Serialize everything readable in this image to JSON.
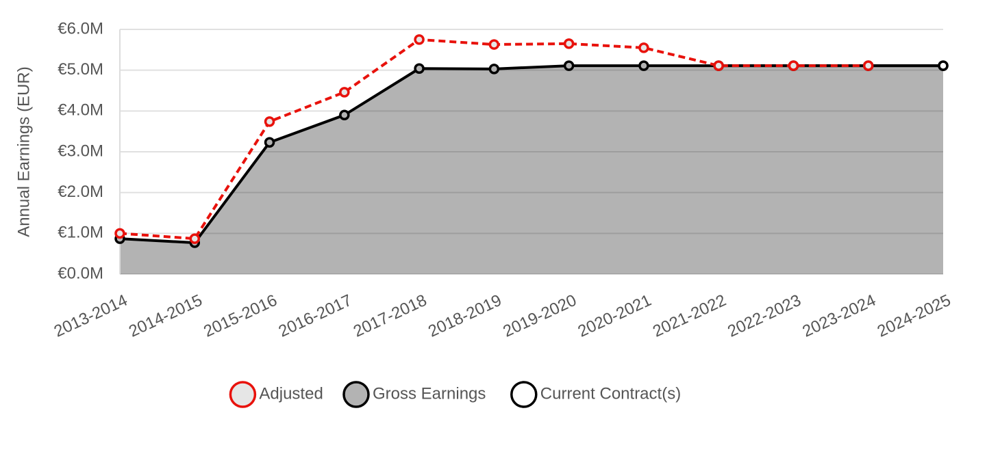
{
  "chart_data": {
    "type": "line",
    "y_label": "Annual Earnings (EUR)",
    "categories": [
      "2013-2014",
      "2014-2015",
      "2015-2016",
      "2016-2017",
      "2017-2018",
      "2018-2019",
      "2019-2020",
      "2020-2021",
      "2021-2022",
      "2022-2023",
      "2023-2024",
      "2024-2025"
    ],
    "series": [
      {
        "name": "Adjusted",
        "color": "#e8120c",
        "marker_fill": "#e6e6e6",
        "line_style": "dashed",
        "values": [
          1000000,
          870000,
          3740000,
          4460000,
          5750000,
          5630000,
          5650000,
          5550000,
          5110000,
          5110000,
          5110000,
          null
        ]
      },
      {
        "name": "Gross Earnings",
        "color": "#000000",
        "marker_fill": "#b3b3b3",
        "area_fill": "#b3b3b3",
        "line_style": "solid",
        "values": [
          870000,
          770000,
          3230000,
          3900000,
          5040000,
          5030000,
          5110000,
          5110000,
          5110000,
          5110000,
          5110000,
          5110000
        ]
      },
      {
        "name": "Current Contract(s)",
        "color": "#000000",
        "marker_fill": "#ffffff",
        "line_style": "solid",
        "values": [
          null,
          null,
          null,
          null,
          null,
          null,
          null,
          null,
          5110000,
          5110000,
          5110000,
          5110000
        ]
      }
    ],
    "ylim": [
      0,
      6000000
    ],
    "yticks": [
      {
        "value": 0,
        "label": "€0.0M"
      },
      {
        "value": 1000000,
        "label": "€1.0M"
      },
      {
        "value": 2000000,
        "label": "€2.0M"
      },
      {
        "value": 3000000,
        "label": "€3.0M"
      },
      {
        "value": 4000000,
        "label": "€4.0M"
      },
      {
        "value": 5000000,
        "label": "€5.0M"
      },
      {
        "value": 6000000,
        "label": "€6.0M"
      }
    ],
    "grid": true,
    "legend": "bottom"
  }
}
